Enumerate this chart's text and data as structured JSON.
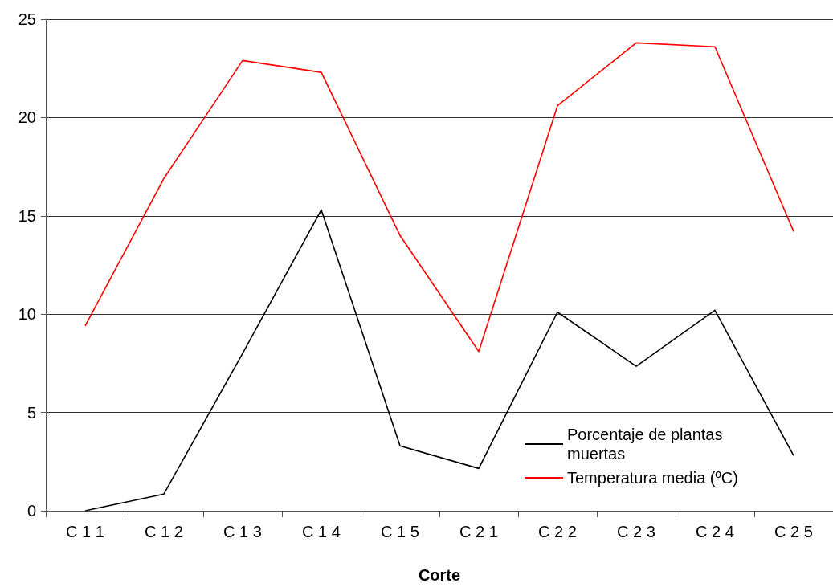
{
  "chart_data": {
    "type": "line",
    "xlabel": "Corte",
    "categories": [
      "C 1 1",
      "C 1 2",
      "C 1 3",
      "C 1 4",
      "C 1 5",
      "C 2 1",
      "C 2 2",
      "C 2 3",
      "C 2 4",
      "C 2 5"
    ],
    "series": [
      {
        "name": "Porcentaje de plantas muertas",
        "color": "#000000",
        "values": [
          0,
          0.85,
          8.0,
          15.3,
          3.3,
          2.15,
          10.1,
          7.35,
          10.2,
          2.8
        ]
      },
      {
        "name": "Temperatura media (ºC)",
        "color": "#ff0000",
        "values": [
          9.4,
          16.9,
          22.9,
          22.3,
          14.0,
          8.1,
          20.6,
          23.8,
          23.6,
          14.2
        ]
      }
    ],
    "ylim": [
      0,
      25
    ],
    "yticks": [
      0,
      5,
      10,
      15,
      20,
      25
    ],
    "grid": "y",
    "legend": "bottom right",
    "marker": "none",
    "line_style": "solid"
  }
}
